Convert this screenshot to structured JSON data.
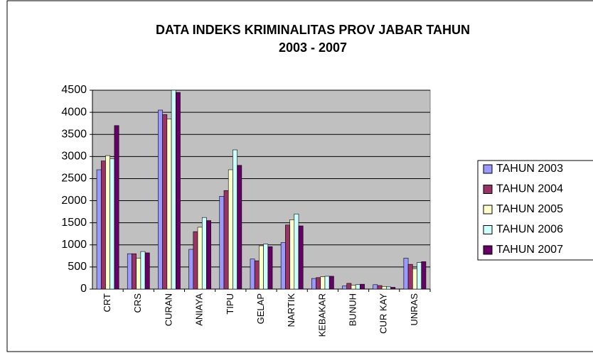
{
  "chart_data": {
    "type": "bar",
    "title": [
      "DATA INDEKS KRIMINALITAS PROV JABAR TAHUN",
      "2003 - 2007"
    ],
    "categories": [
      "CRT",
      "CRS",
      "CURAN",
      "ANIAYA",
      "TIPU",
      "GELAP",
      "NARTIK",
      "KEBAKAR",
      "BUNUH",
      "CUR KAY",
      "UNRAS"
    ],
    "series": [
      {
        "name": "TAHUN 2003",
        "color": "#9999ff",
        "values": [
          2700,
          800,
          4050,
          900,
          2100,
          680,
          1050,
          240,
          70,
          100,
          700
        ]
      },
      {
        "name": "TAHUN 2004",
        "color": "#993366",
        "values": [
          2900,
          800,
          3950,
          1300,
          2230,
          640,
          1450,
          260,
          130,
          80,
          560
        ]
      },
      {
        "name": "TAHUN 2005",
        "color": "#ffffcc",
        "values": [
          3020,
          700,
          3850,
          1400,
          2700,
          980,
          1570,
          280,
          90,
          60,
          460
        ]
      },
      {
        "name": "TAHUN 2006",
        "color": "#ccffff",
        "values": [
          2950,
          850,
          4500,
          1620,
          3150,
          1020,
          1700,
          290,
          100,
          50,
          600
        ]
      },
      {
        "name": "TAHUN 2007",
        "color": "#660066",
        "values": [
          3700,
          820,
          4450,
          1550,
          2800,
          960,
          1430,
          290,
          110,
          40,
          620
        ]
      }
    ],
    "ylim": [
      0,
      4500
    ],
    "yticks": [
      0,
      500,
      1000,
      1500,
      2000,
      2500,
      3000,
      3500,
      4000,
      4500
    ],
    "grid": true,
    "legend": "right",
    "plot_background": "#c0c0c0"
  }
}
